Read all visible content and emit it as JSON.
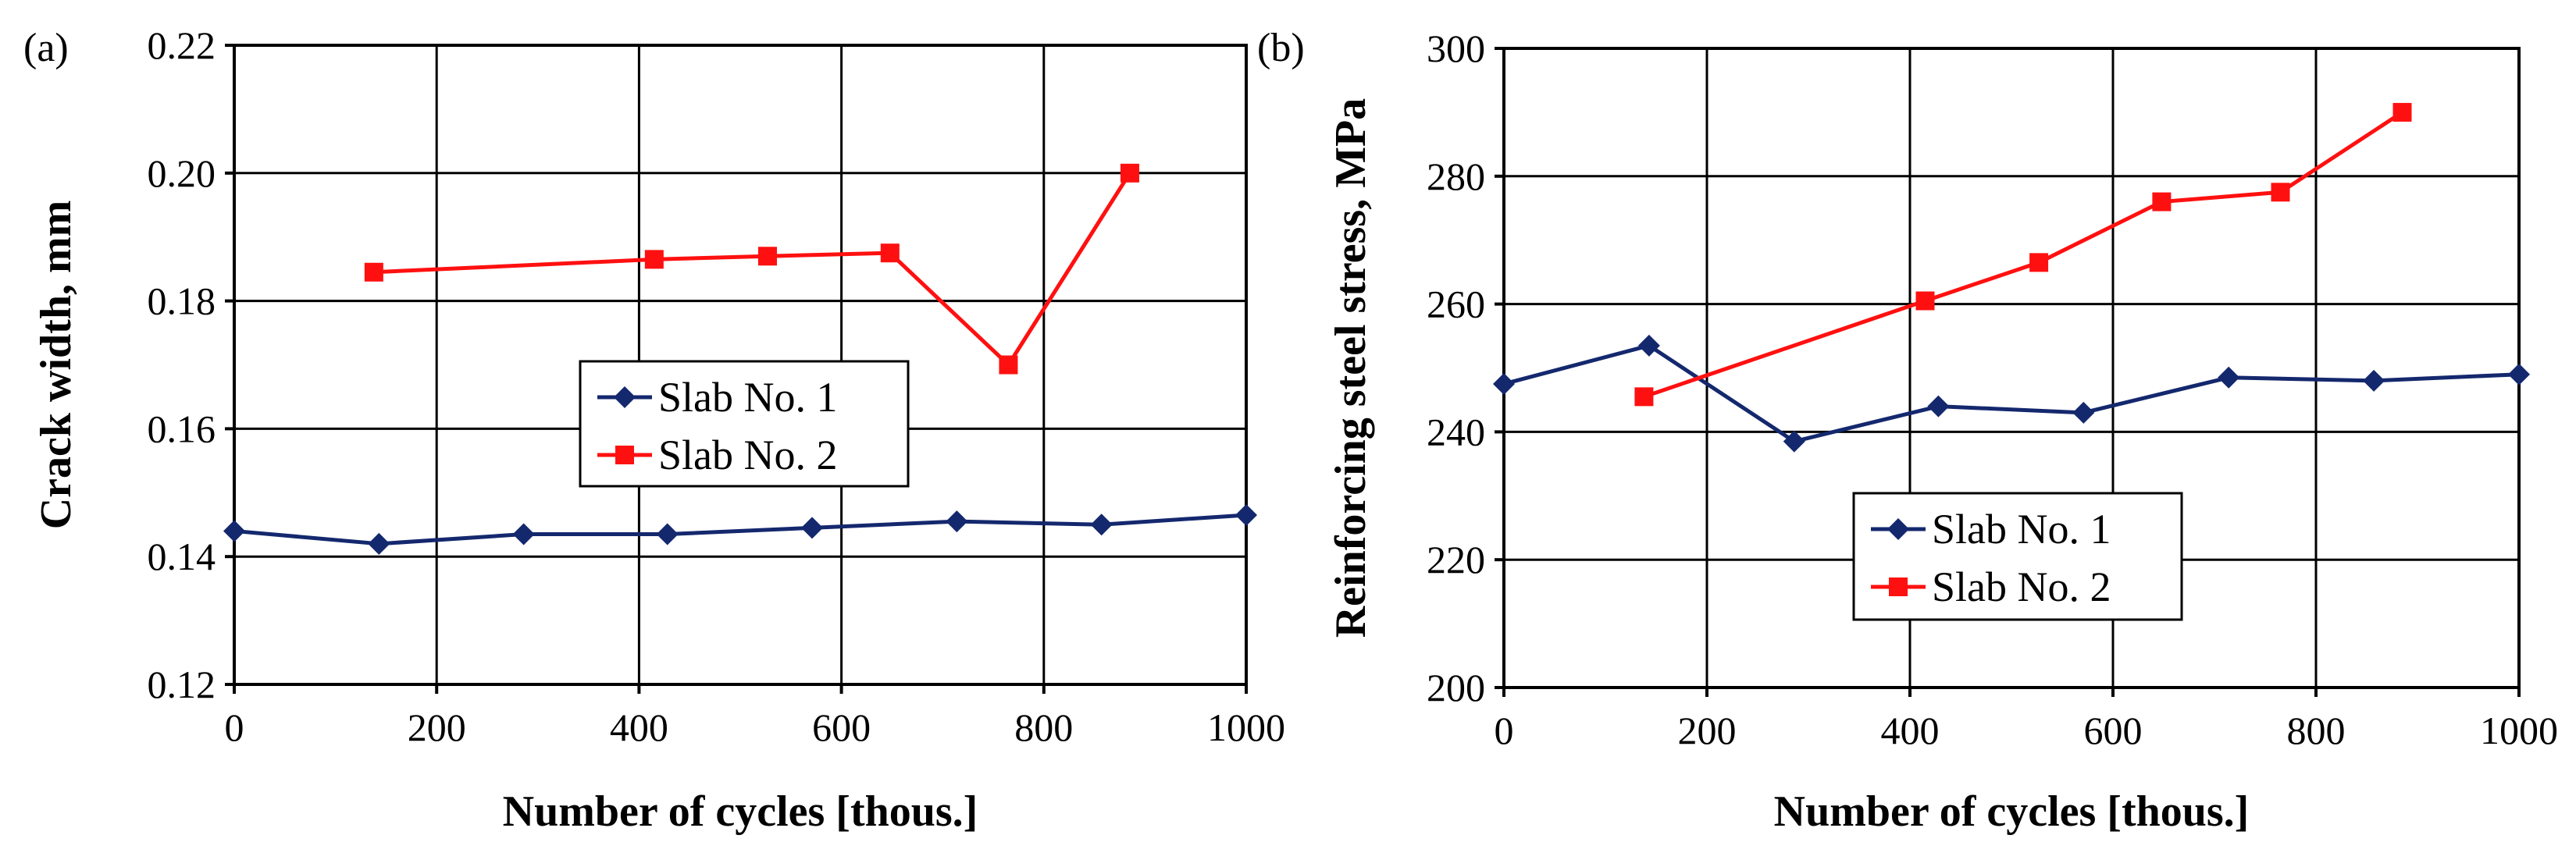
{
  "chart_data": [
    {
      "type": "line",
      "panel_label": "(a)",
      "xlabel": "Number of cycles [thous.]",
      "ylabel": "Crack width, mm",
      "xlim": [
        0,
        1000
      ],
      "ylim": [
        0.12,
        0.22
      ],
      "xticks": [
        0,
        200,
        400,
        600,
        800,
        1000
      ],
      "xtick_labels": [
        "0",
        "200",
        "400",
        "600",
        "800",
        "1000"
      ],
      "yticks": [
        0.12,
        0.14,
        0.16,
        0.18,
        0.2,
        0.22
      ],
      "ytick_labels": [
        "0.12",
        "0.14",
        "0.16",
        "0.18",
        "0.20",
        "0.22"
      ],
      "grid": true,
      "legend_position": "center",
      "series": [
        {
          "name": "Slab No. 1",
          "color": "#14286e",
          "marker": "diamond",
          "x": [
            0,
            143,
            286,
            428,
            571,
            714,
            857,
            1000
          ],
          "y": [
            0.144,
            0.142,
            0.1435,
            0.1435,
            0.1445,
            0.1455,
            0.145,
            0.1465
          ]
        },
        {
          "name": "Slab No. 2",
          "color": "#ff1010",
          "marker": "square",
          "x": [
            138,
            415,
            527,
            648,
            765,
            885
          ],
          "y": [
            0.1845,
            0.1865,
            0.187,
            0.1875,
            0.17,
            0.2
          ]
        }
      ]
    },
    {
      "type": "line",
      "panel_label": "(b)",
      "xlabel": "Number of cycles [thous.]",
      "ylabel": "Reinforcing steel stress, MPa",
      "xlim": [
        0,
        1000
      ],
      "ylim": [
        200,
        300
      ],
      "xticks": [
        0,
        200,
        400,
        600,
        800,
        1000
      ],
      "xtick_labels": [
        "0",
        "200",
        "400",
        "600",
        "800",
        "1000"
      ],
      "yticks": [
        200,
        220,
        240,
        260,
        280,
        300
      ],
      "ytick_labels": [
        "200",
        "220",
        "240",
        "260",
        "280",
        "300"
      ],
      "grid": true,
      "legend_position": "bottom-center",
      "series": [
        {
          "name": "Slab No. 1",
          "color": "#14286e",
          "marker": "diamond",
          "x": [
            0,
            143,
            286,
            428,
            571,
            714,
            857,
            1000
          ],
          "y": [
            247.5,
            253.5,
            238.5,
            244,
            243,
            248.5,
            248,
            249
          ]
        },
        {
          "name": "Slab No. 2",
          "color": "#ff1010",
          "marker": "square",
          "x": [
            138,
            415,
            527,
            648,
            765,
            885
          ],
          "y": [
            245.5,
            260.5,
            266.5,
            276,
            277.5,
            290
          ]
        }
      ]
    }
  ]
}
